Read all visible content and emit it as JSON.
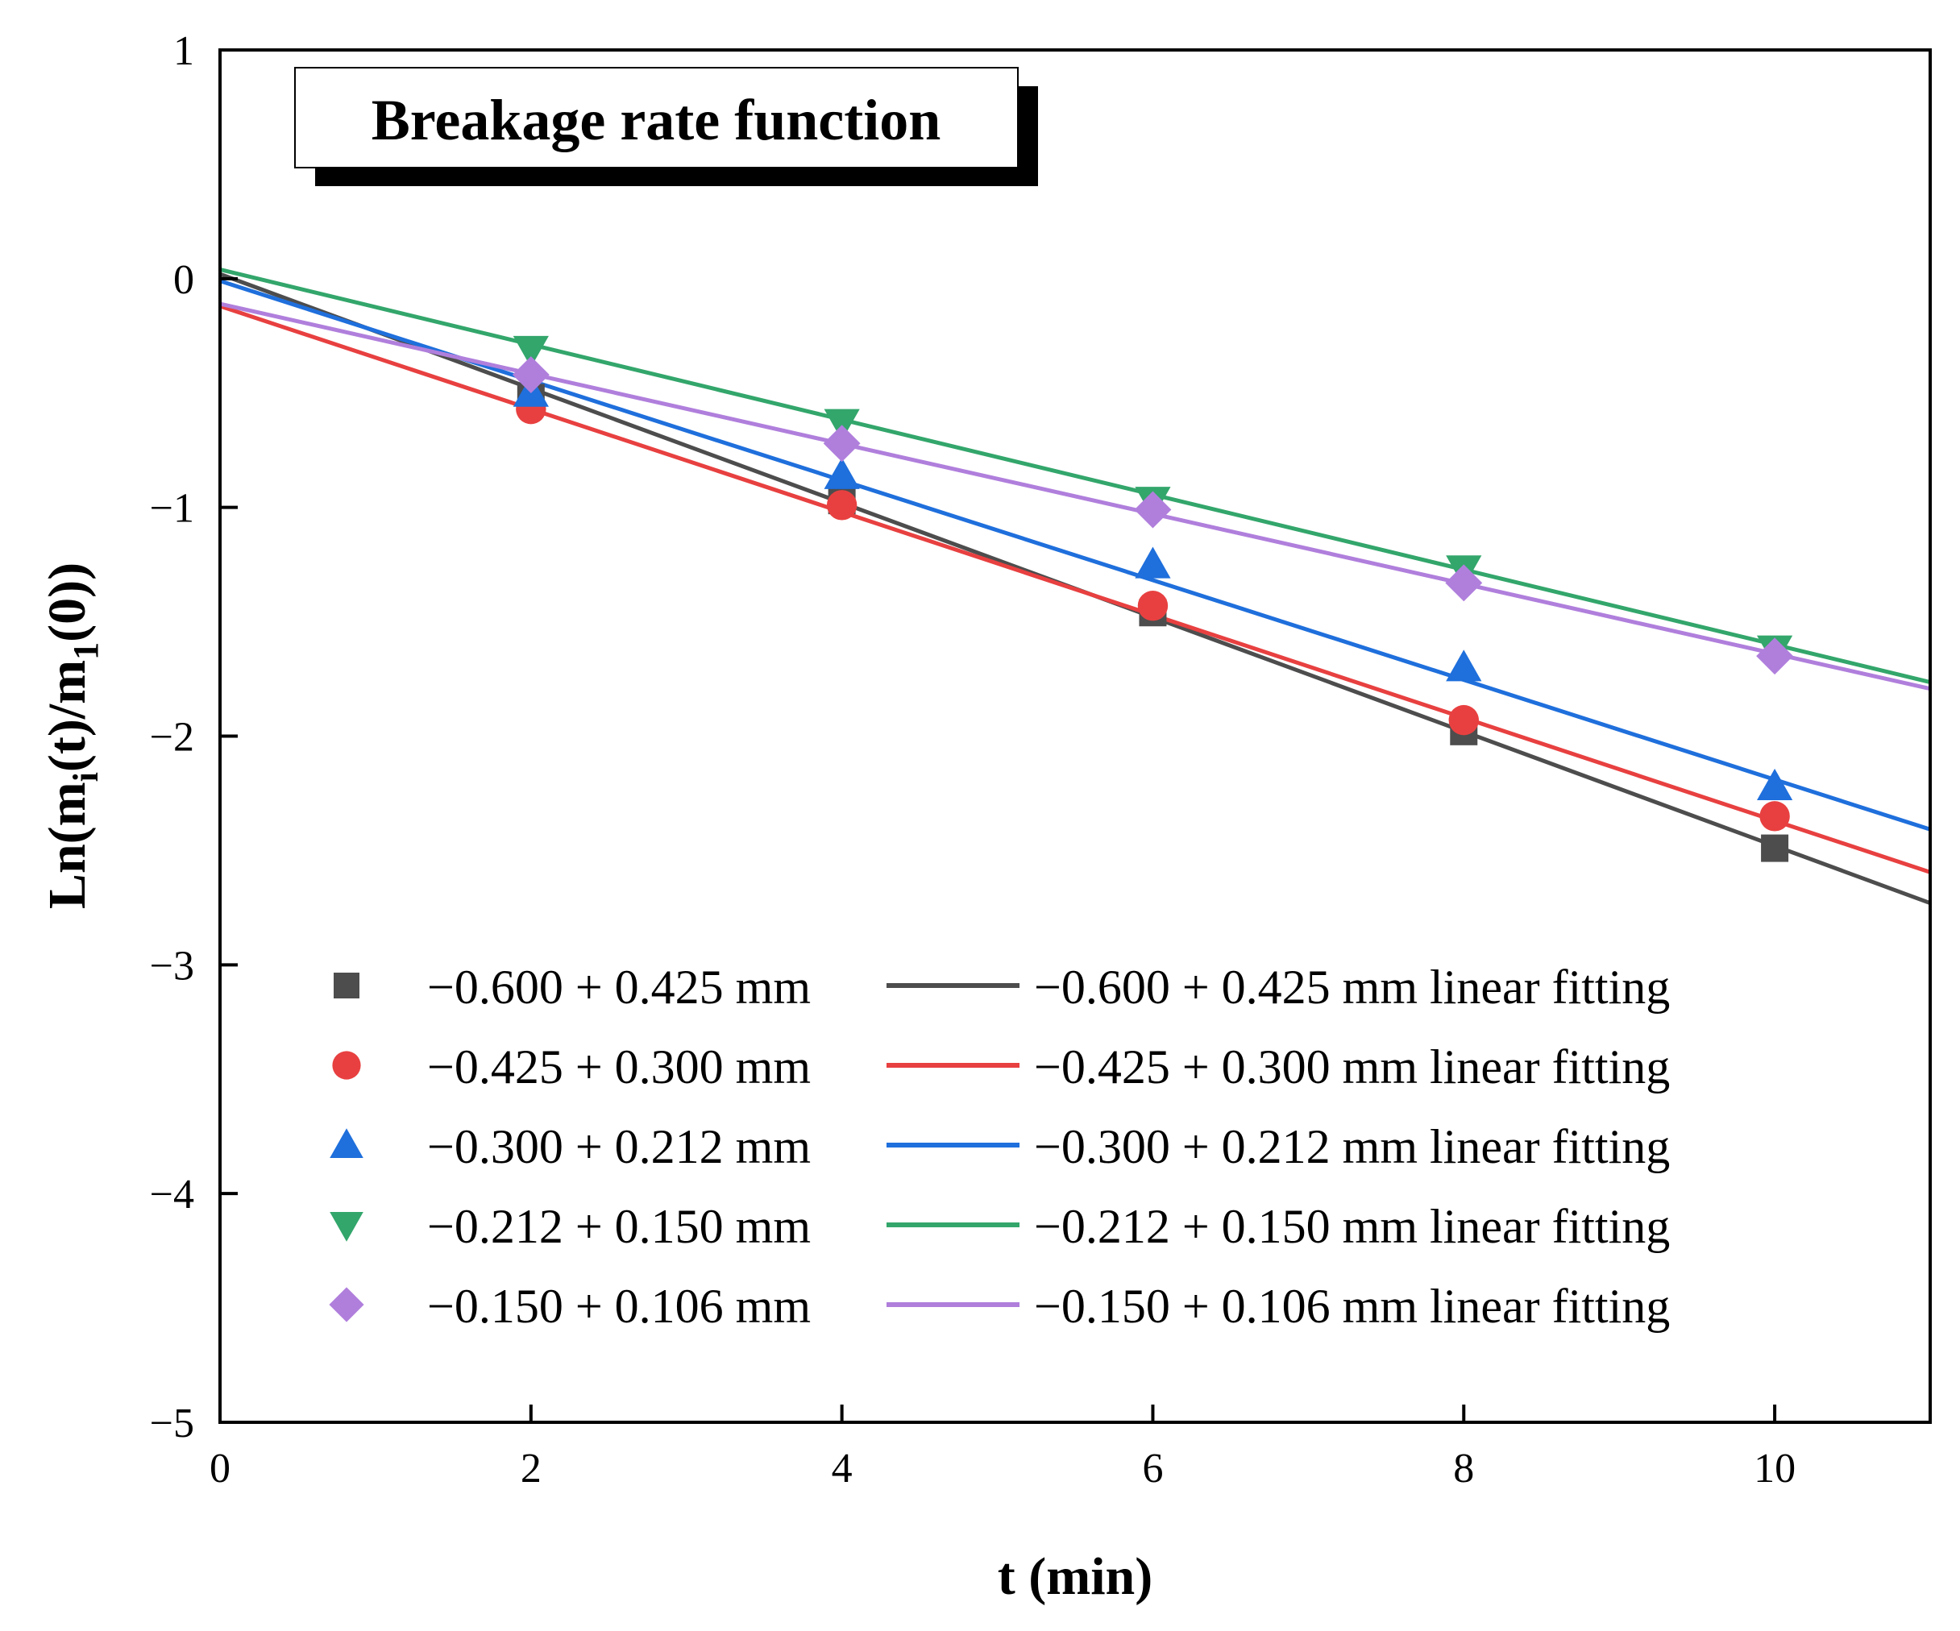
{
  "chart_data": {
    "type": "scatter",
    "title": "Breakage rate function",
    "xlabel": "t (min)",
    "ylabel": {
      "parts": [
        "Ln(m",
        "i",
        "(t)/m",
        "1",
        "(0))"
      ]
    },
    "xlim": [
      0,
      11
    ],
    "ylim": [
      -5,
      1
    ],
    "xticks": [
      0,
      2,
      4,
      6,
      8,
      10
    ],
    "yticks": [
      1,
      0,
      -1,
      -2,
      -3,
      -4,
      -5
    ],
    "xtick_labels": [
      "0",
      "2",
      "4",
      "6",
      "8",
      "10"
    ],
    "ytick_labels": [
      "1",
      "0",
      "−1",
      "−2",
      "−3",
      "−4",
      "−5"
    ],
    "grid": false,
    "legend_position": "bottom-left",
    "series": [
      {
        "name": "−0.600 + 0.425 mm",
        "fit_name": "−0.600 + 0.425 mm linear fitting",
        "color": "#4d4d4d",
        "marker": "square",
        "x": [
          2,
          4,
          6,
          8,
          10
        ],
        "y": [
          -0.52,
          -0.97,
          -1.46,
          -1.98,
          -2.49
        ],
        "fit": {
          "intercept": 0.02,
          "slope": -0.25
        }
      },
      {
        "name": "−0.425 + 0.300 mm",
        "fit_name": "−0.425 + 0.300 mm linear fitting",
        "color": "#e84040",
        "marker": "circle",
        "x": [
          2,
          4,
          6,
          8,
          10
        ],
        "y": [
          -0.57,
          -0.99,
          -1.43,
          -1.93,
          -2.35
        ],
        "fit": {
          "intercept": -0.12,
          "slope": -0.225
        }
      },
      {
        "name": "−0.300 + 0.212 mm",
        "fit_name": "−0.300 + 0.212 mm linear fitting",
        "color": "#1f6fdc",
        "marker": "triangle-up",
        "x": [
          2,
          4,
          6,
          8,
          10
        ],
        "y": [
          -0.5,
          -0.86,
          -1.25,
          -1.7,
          -2.22
        ],
        "fit": {
          "intercept": -0.01,
          "slope": -0.218
        }
      },
      {
        "name": "−0.212 + 0.150 mm",
        "fit_name": "−0.212 + 0.150 mm linear fitting",
        "color": "#33a66b",
        "marker": "triangle-down",
        "x": [
          2,
          4,
          6,
          8,
          10
        ],
        "y": [
          -0.31,
          -0.63,
          -0.97,
          -1.27,
          -1.62
        ],
        "fit": {
          "intercept": 0.04,
          "slope": -0.164
        }
      },
      {
        "name": "−0.150 + 0.106 mm",
        "fit_name": "−0.150 + 0.106 mm linear fitting",
        "color": "#b07fdc",
        "marker": "diamond",
        "x": [
          2,
          4,
          6,
          8,
          10
        ],
        "y": [
          -0.42,
          -0.72,
          -1.01,
          -1.33,
          -1.65
        ],
        "fit": {
          "intercept": -0.11,
          "slope": -0.153
        }
      }
    ]
  }
}
